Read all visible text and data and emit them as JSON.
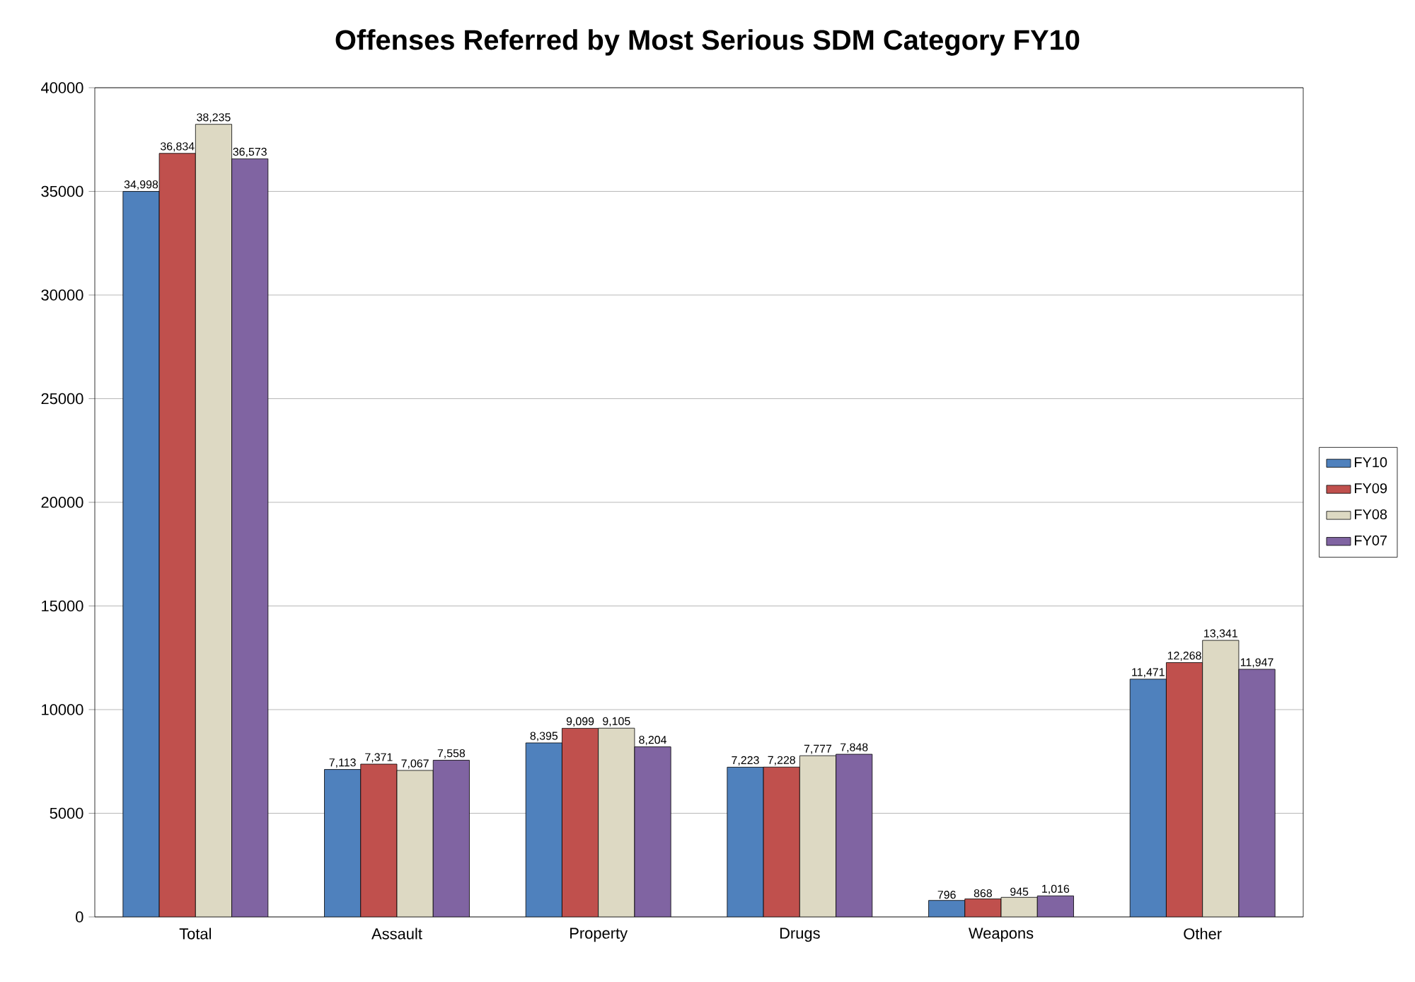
{
  "chart_data": {
    "type": "bar",
    "title": "Offenses Referred by Most Serious SDM Category FY10",
    "categories": [
      "Total",
      "Assault",
      "Property",
      "Drugs",
      "Weapons",
      "Other"
    ],
    "series": [
      {
        "name": "FY10",
        "color": "#4f81bd",
        "values": [
          34998,
          7113,
          8395,
          7223,
          796,
          11471
        ],
        "value_labels": [
          "34,998",
          "7,113",
          "8,395",
          "7,223",
          "796",
          "11,471"
        ]
      },
      {
        "name": "FY09",
        "color": "#c0504d",
        "values": [
          36834,
          7371,
          9099,
          7228,
          868,
          12268
        ],
        "value_labels": [
          "36,834",
          "7,371",
          "9,099",
          "7,228",
          "868",
          "12,268"
        ]
      },
      {
        "name": "FY08",
        "color": "#ddd9c3",
        "values": [
          38235,
          7067,
          9105,
          7777,
          945,
          13341
        ],
        "value_labels": [
          "38,235",
          "7,067",
          "9,105",
          "7,777",
          "945",
          "13,341"
        ]
      },
      {
        "name": "FY07",
        "color": "#8064a2",
        "values": [
          36573,
          7558,
          8204,
          7848,
          1016,
          11947
        ],
        "value_labels": [
          "36,573",
          "7,558",
          "8,204",
          "7,848",
          "1,016",
          "11,947"
        ]
      }
    ],
    "ylim": [
      0,
      40000
    ],
    "yticks": [
      0,
      5000,
      10000,
      15000,
      20000,
      25000,
      30000,
      35000,
      40000
    ],
    "grid": "y",
    "legend": "right"
  }
}
